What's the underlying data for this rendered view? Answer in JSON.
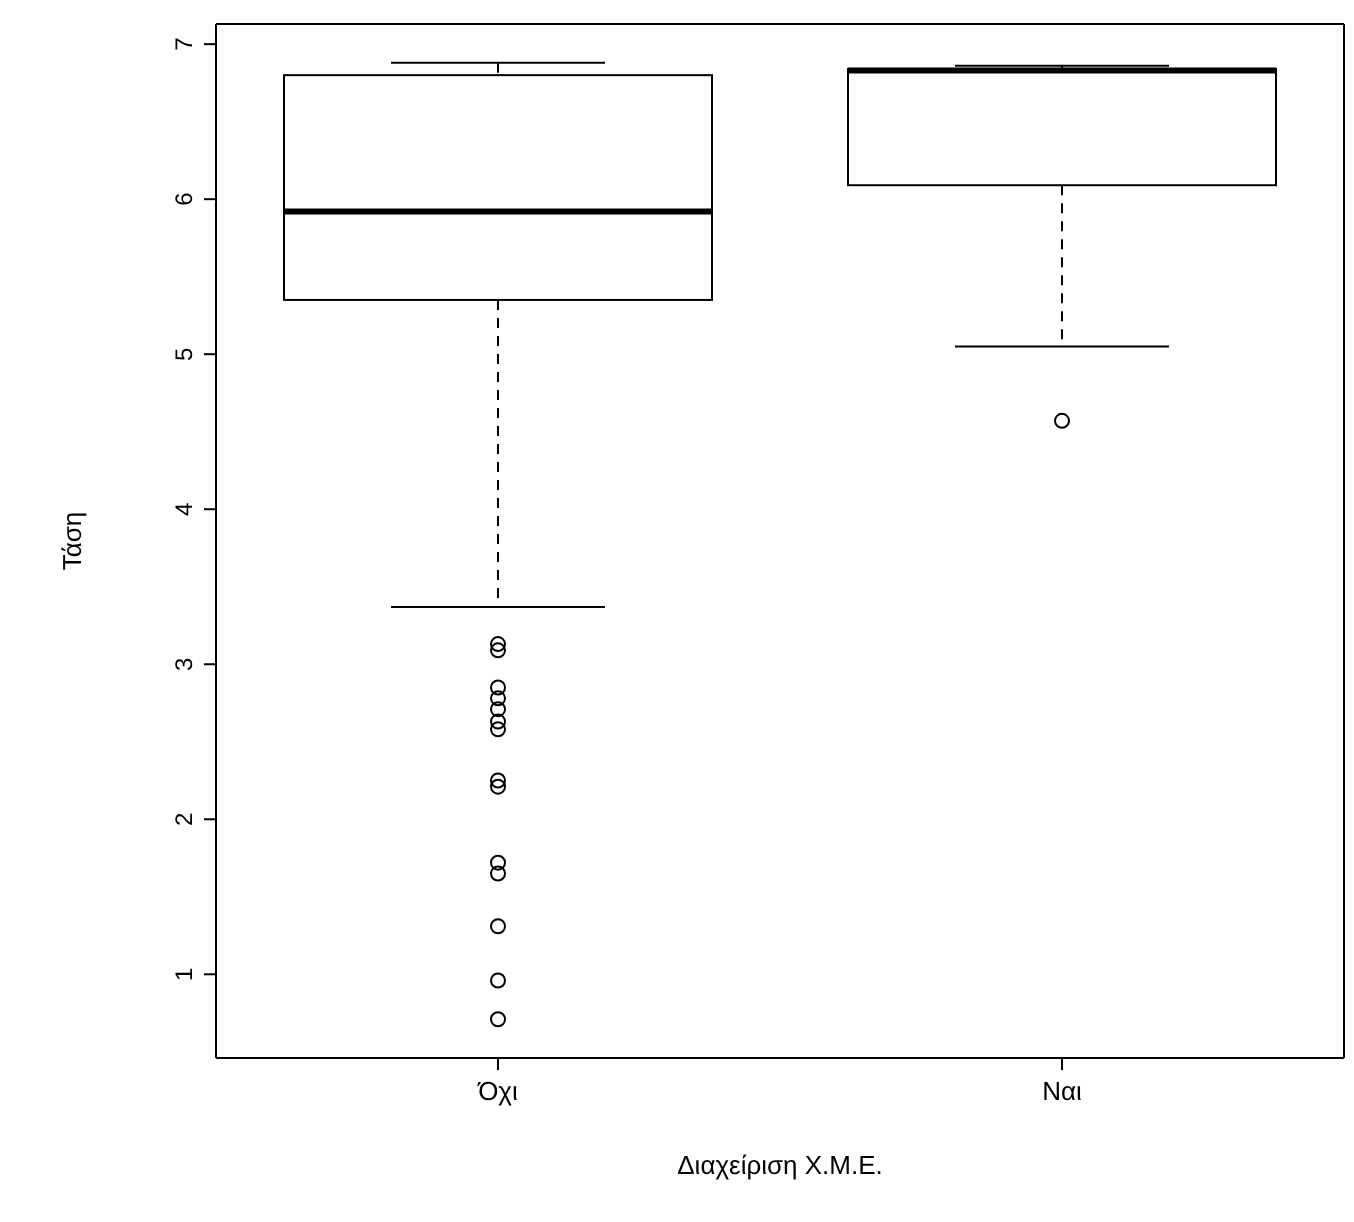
{
  "chart_data": {
    "type": "box",
    "xlabel": "Διαχείριση Χ.Μ.Ε.",
    "ylabel": "Τάση",
    "categories": [
      "Όχι",
      "Ναι"
    ],
    "boxes": [
      {
        "low": 3.37,
        "q1": 5.35,
        "median": 5.92,
        "q3": 6.8,
        "high": 6.88,
        "outliers": [
          3.13,
          3.09,
          2.85,
          2.78,
          2.71,
          2.63,
          2.58,
          2.25,
          2.21,
          1.72,
          1.65,
          1.31,
          0.96,
          0.71
        ]
      },
      {
        "low": 5.05,
        "q1": 6.09,
        "median": 6.83,
        "q3": 6.84,
        "high": 6.86,
        "outliers": [
          4.57
        ]
      }
    ],
    "ylim": [
      0.46,
      7.13
    ],
    "yticks": [
      1,
      2,
      3,
      4,
      5,
      6,
      7
    ],
    "grid": false,
    "legend": false
  }
}
